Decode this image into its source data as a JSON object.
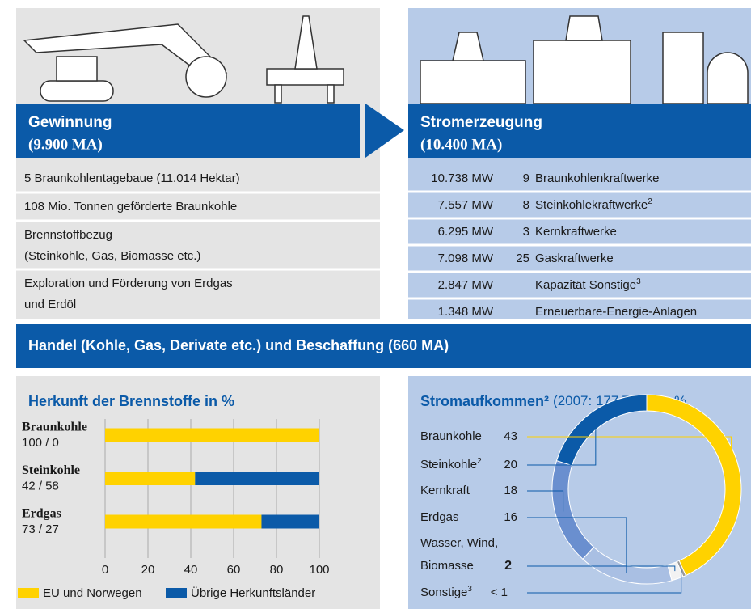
{
  "left": {
    "title": "Gewinnung",
    "subtitle": "(9.900 MA)",
    "rows": [
      [
        "5 Braunkohlentagebaue (11.014 Hektar)"
      ],
      [
        "108 Mio. Tonnen geförderte Braunkohle"
      ],
      [
        "Brennstoffbezug",
        "(Steinkohle, Gas, Biomasse etc.)"
      ],
      [
        "Exploration und Förderung von Erdgas",
        "und Erdöl"
      ]
    ]
  },
  "right": {
    "title": "Stromerzeugung",
    "subtitle": "(10.400 MA)",
    "rows": [
      {
        "capacity": "10.738 MW",
        "count": "9",
        "name": "Braunkohlenkraftwerke"
      },
      {
        "capacity": "7.557 MW",
        "count": "8",
        "name": "Steinkohlekraftwerke",
        "sup": "2"
      },
      {
        "capacity": "6.295 MW",
        "count": "3",
        "name": "Kernkraftwerke"
      },
      {
        "capacity": "7.098 MW",
        "count": "25",
        "name": "Gaskraftwerke"
      },
      {
        "capacity": "2.847 MW",
        "name": "Kapazität Sonstige",
        "sup": "3"
      },
      {
        "capacity": "1.348 MW",
        "name": "Erneuerbare-Energie-Anlagen"
      }
    ]
  },
  "band": "Handel (Kohle, Gas, Derivate etc.) und Beschaffung (660 MA)",
  "chart_data": [
    {
      "type": "bar",
      "orientation": "horizontal",
      "stacked": true,
      "title": "Herkunft der Brennstoffe in %",
      "categories": [
        "Braunkohle",
        "Steinkohle",
        "Erdgas"
      ],
      "category_sublabels": [
        "100 / 0",
        "42 / 58",
        "73 / 27"
      ],
      "series": [
        {
          "name": "EU und Norwegen",
          "color": "#ffd200",
          "values": [
            100,
            42,
            73
          ]
        },
        {
          "name": "Übrige Herkunftsländer",
          "color": "#0b5aa8",
          "values": [
            0,
            58,
            27
          ]
        }
      ],
      "xlim": [
        0,
        100
      ],
      "xticks": [
        0,
        20,
        40,
        60,
        80,
        100
      ],
      "grid": true,
      "legend": "bottom"
    },
    {
      "type": "pie",
      "donut": true,
      "title": "Stromaufkommen²",
      "subtitle": "(2007: 177 TWh) in %",
      "categories": [
        "Braunkohle",
        "Steinkohle",
        "Kernkraft",
        "Erdgas",
        [
          "Wasser, Wind,",
          "Biomasse"
        ],
        "Sonstige"
      ],
      "category_sups": [
        null,
        "2",
        null,
        null,
        null,
        "3"
      ],
      "values": [
        43,
        20,
        18,
        16,
        2,
        0.5
      ],
      "value_labels": [
        null,
        null,
        null,
        null,
        null,
        "< 1"
      ],
      "colors": [
        "#ffd200",
        "#0b5aa8",
        "#6a8fcf",
        "#a9bfe3",
        "#f2f2f2",
        "#9a9a9a"
      ]
    }
  ]
}
